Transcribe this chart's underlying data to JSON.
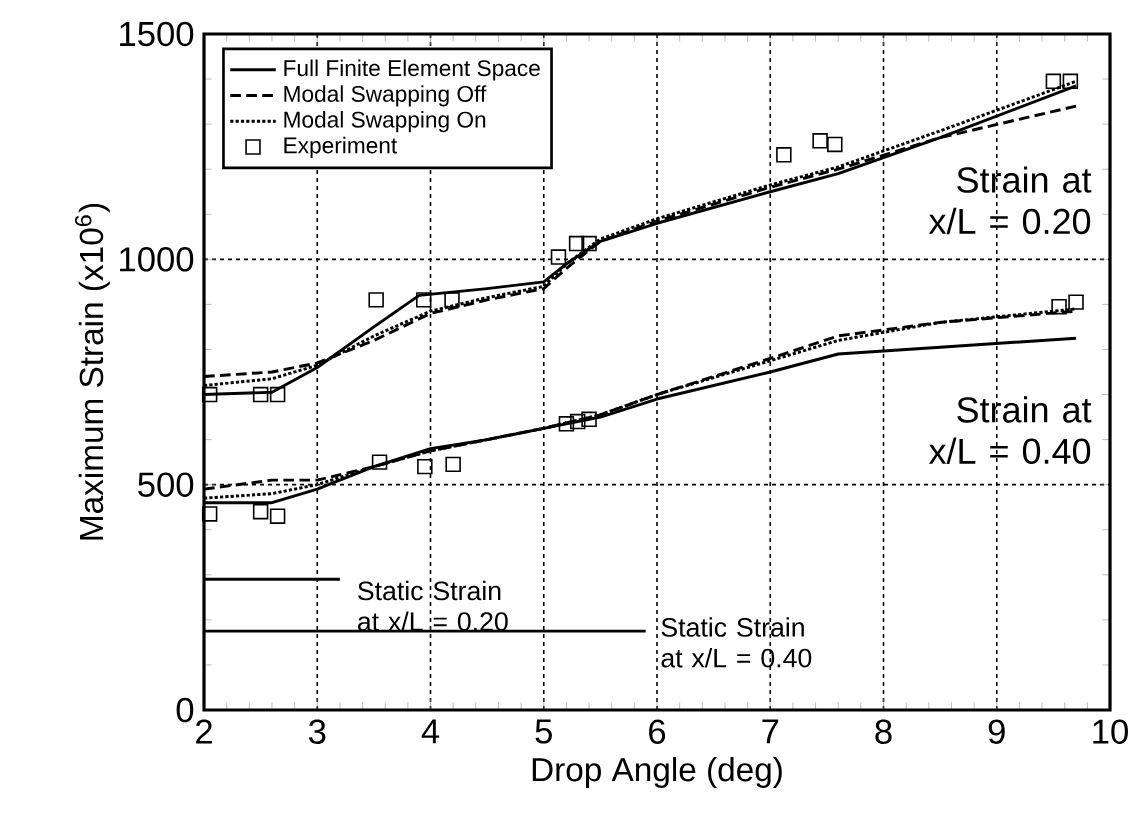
{
  "chart_data": {
    "type": "line",
    "xlabel": "Drop Angle (deg)",
    "ylabel": "Maximum Strain (x10$^{6}$)",
    "xlim": [
      2,
      10
    ],
    "ylim": [
      0,
      1500
    ],
    "xticks": [
      2,
      3,
      4,
      5,
      6,
      7,
      8,
      9,
      10
    ],
    "yticks": [
      0,
      500,
      1000,
      1500
    ],
    "grid": true,
    "legend": "top left",
    "series": [
      {
        "name": "Full Finite Element Space",
        "color": "#000000",
        "line_style": "solid",
        "x": [
          2.0,
          2.6,
          3.0,
          3.5,
          3.9,
          4.5,
          5.0,
          5.2,
          5.5,
          6.0,
          7.0,
          7.6,
          8.5,
          9.7
        ],
        "values": [
          700,
          705,
          760,
          850,
          920,
          935,
          950,
          990,
          1040,
          1080,
          1150,
          1190,
          1270,
          1385
        ]
      },
      {
        "name": "Modal Swapping Off",
        "color": "#000000",
        "line_style": "dashed",
        "x": [
          2.0,
          2.6,
          3.0,
          3.5,
          4.0,
          4.5,
          5.0,
          5.2,
          5.5,
          6.0,
          7.0,
          7.6,
          8.5,
          9.7
        ],
        "values": [
          740,
          750,
          770,
          820,
          880,
          910,
          935,
          980,
          1040,
          1085,
          1160,
          1200,
          1270,
          1340
        ]
      },
      {
        "name": "Modal Swapping On",
        "color": "#000000",
        "line_style": "dotted",
        "x": [
          2.0,
          2.6,
          3.0,
          3.5,
          4.0,
          4.5,
          5.0,
          5.2,
          5.5,
          6.0,
          7.0,
          7.6,
          8.5,
          9.7
        ],
        "values": [
          720,
          735,
          765,
          830,
          885,
          915,
          940,
          990,
          1045,
          1090,
          1165,
          1205,
          1285,
          1395
        ]
      },
      {
        "name": "Experiment",
        "type": "scatter",
        "marker": "square",
        "color": "#000000",
        "x": [
          2.05,
          2.5,
          2.65,
          3.52,
          3.94,
          4.19,
          5.13,
          5.29,
          5.4,
          7.12,
          7.44,
          7.57,
          9.5,
          9.65,
          2.05,
          2.5,
          2.65,
          3.55,
          3.95,
          4.2,
          5.2,
          5.3,
          5.4,
          9.55,
          9.7
        ],
        "values": [
          700,
          700,
          700,
          910,
          910,
          910,
          1005,
          1035,
          1035,
          1232,
          1263,
          1255,
          1395,
          1395,
          435,
          440,
          430,
          550,
          540,
          545,
          635,
          640,
          645,
          895,
          905
        ]
      },
      {
        "color": "#000000",
        "line_style": "solid",
        "x": [
          2.0,
          2.6,
          3.0,
          3.5,
          4.0,
          4.5,
          5.0,
          5.5,
          6.0,
          7.0,
          7.6,
          8.5,
          9.7
        ],
        "values": [
          460,
          460,
          490,
          540,
          580,
          600,
          625,
          650,
          690,
          750,
          790,
          805,
          825
        ]
      },
      {
        "color": "#000000",
        "line_style": "dashed",
        "x": [
          2.0,
          2.6,
          3.0,
          3.5,
          4.0,
          4.5,
          5.0,
          5.5,
          6.0,
          7.0,
          7.6,
          8.5,
          9.7
        ],
        "values": [
          490,
          510,
          510,
          540,
          575,
          600,
          625,
          655,
          700,
          780,
          830,
          860,
          885
        ]
      },
      {
        "color": "#000000",
        "line_style": "dotted",
        "x": [
          2.0,
          2.6,
          3.0,
          3.5,
          4.0,
          4.5,
          5.0,
          5.5,
          6.0,
          7.0,
          7.6,
          8.5,
          9.7
        ],
        "values": [
          470,
          480,
          500,
          540,
          575,
          600,
          625,
          655,
          700,
          775,
          820,
          860,
          890
        ]
      },
      {
        "color": "#000000",
        "line_style": "solid",
        "x": [
          2.0,
          3.2
        ],
        "values": [
          290,
          290
        ]
      },
      {
        "color": "#000000",
        "line_style": "solid",
        "x": [
          2.0,
          5.9
        ],
        "values": [
          175,
          175
        ]
      }
    ],
    "annotations": [
      "Strain at x/L = 0.20",
      "Strain at x/L = 0.40",
      "Static Strain at x/L = 0.20",
      "Static Strain at x/L = 0.40"
    ]
  }
}
